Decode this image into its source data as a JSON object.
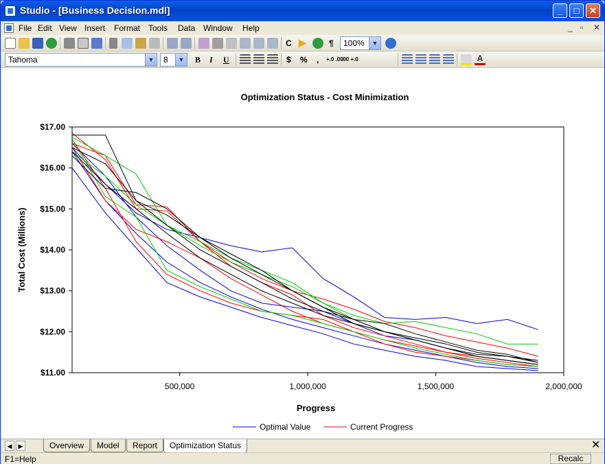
{
  "window": {
    "title": "Studio - [Business Decision.mdl]"
  },
  "menu": {
    "items": [
      "File",
      "Edit",
      "View",
      "Insert",
      "Format",
      "Tools",
      "Data",
      "Window",
      "Help"
    ]
  },
  "toolbar": {
    "zoom": "100%",
    "c_label": "C",
    "pilcrow": "¶"
  },
  "format_bar": {
    "font": "Tahoma",
    "size": "8",
    "bold": "B",
    "italic": "I",
    "underline": "U",
    "currency": "$",
    "percent": "%",
    "comma": ",",
    "inc_decimal": "+.0 .00",
    "dec_decimal": ".00 +.0"
  },
  "tabs": [
    "Overview",
    "Model",
    "Report",
    "Optimization Status"
  ],
  "status": {
    "text": "F1=Help",
    "recalc": "Recalc"
  },
  "colors": {
    "blue": "#0000dd",
    "red": "#ff0000",
    "green": "#00cc00",
    "black": "#000000"
  },
  "chart_data": {
    "type": "line",
    "title": "Optimization Status - Cost Minimization",
    "xlabel": "Progress",
    "ylabel": "Total Cost (Millions)",
    "xlim": [
      80000,
      2000000
    ],
    "ylim": [
      11.0,
      17.0
    ],
    "xticks": [
      {
        "v": 500000,
        "label": "500,000"
      },
      {
        "v": 1000000,
        "label": "1,000,000"
      },
      {
        "v": 1500000,
        "label": "1,500,000"
      },
      {
        "v": 2000000,
        "label": "2,000,000"
      }
    ],
    "yticks": [
      {
        "v": 17,
        "label": "$17.00"
      },
      {
        "v": 16,
        "label": "$16.00"
      },
      {
        "v": 15,
        "label": "$15.00"
      },
      {
        "v": 14,
        "label": "$14.00"
      },
      {
        "v": 13,
        "label": "$13.00"
      },
      {
        "v": 12,
        "label": "$12.00"
      },
      {
        "v": 11,
        "label": "$11.00"
      }
    ],
    "legend": [
      {
        "name": "Optimal Value",
        "color": "#0000dd"
      },
      {
        "name": "Current Progress",
        "color": "#ff0000"
      }
    ],
    "legend_position": "bottom",
    "x": [
      80000,
      210000,
      330000,
      450000,
      580000,
      700000,
      820000,
      940000,
      1060000,
      1180000,
      1300000,
      1420000,
      1540000,
      1660000,
      1780000,
      1900000
    ],
    "series": [
      {
        "color": "#0000dd",
        "values": [
          16.5,
          15.6,
          14.9,
          14.5,
          14.3,
          14.1,
          13.95,
          14.05,
          13.3,
          12.85,
          12.35,
          12.3,
          12.35,
          12.2,
          12.3,
          12.05
        ]
      },
      {
        "color": "#0000dd",
        "values": [
          16.0,
          14.9,
          14.05,
          13.2,
          12.85,
          12.6,
          12.35,
          12.15,
          11.95,
          11.7,
          11.55,
          11.4,
          11.3,
          11.15,
          11.1,
          11.05
        ]
      },
      {
        "color": "#0000dd",
        "values": [
          16.4,
          15.2,
          14.4,
          13.7,
          13.2,
          12.85,
          12.55,
          12.3,
          12.1,
          11.9,
          11.7,
          11.55,
          11.4,
          11.25,
          11.15,
          11.1
        ]
      },
      {
        "color": "#0000dd",
        "values": [
          16.6,
          15.8,
          14.8,
          14.1,
          13.5,
          13.0,
          12.7,
          12.6,
          12.5,
          12.2,
          11.9,
          11.8,
          11.6,
          11.4,
          11.3,
          11.2
        ]
      },
      {
        "color": "#ff0000",
        "values": [
          16.85,
          16.2,
          15.0,
          14.95,
          14.2,
          13.7,
          13.3,
          13.0,
          12.8,
          12.55,
          12.25,
          12.1,
          11.9,
          11.75,
          11.6,
          11.4
        ]
      },
      {
        "color": "#ff0000",
        "values": [
          16.7,
          15.5,
          14.2,
          13.4,
          13.0,
          12.7,
          12.5,
          12.4,
          12.3,
          12.0,
          11.7,
          11.5,
          11.4,
          11.3,
          11.2,
          11.15
        ]
      },
      {
        "color": "#ff0000",
        "values": [
          16.6,
          16.3,
          15.1,
          15.05,
          14.2,
          13.6,
          13.2,
          12.9,
          12.4,
          12.1,
          11.9,
          11.7,
          11.5,
          11.4,
          11.3,
          11.2
        ]
      },
      {
        "color": "#ff0000",
        "values": [
          16.5,
          15.2,
          14.5,
          14.2,
          13.8,
          13.3,
          12.9,
          12.5,
          12.2,
          12.0,
          11.8,
          11.65,
          11.5,
          11.35,
          11.25,
          11.15
        ]
      },
      {
        "color": "#00cc00",
        "values": [
          16.75,
          16.3,
          15.85,
          14.6,
          14.1,
          13.7,
          13.4,
          13.1,
          12.7,
          12.4,
          12.2,
          12.25,
          12.1,
          11.95,
          11.7,
          11.7
        ]
      },
      {
        "color": "#00cc00",
        "values": [
          16.7,
          15.3,
          14.8,
          13.5,
          13.1,
          12.8,
          12.5,
          12.4,
          12.2,
          12.0,
          11.8,
          11.6,
          11.45,
          11.3,
          11.2,
          11.15
        ]
      },
      {
        "color": "#00cc00",
        "values": [
          16.4,
          15.8,
          15.1,
          14.6,
          14.2,
          13.8,
          13.5,
          13.2,
          12.7,
          12.3,
          12.0,
          11.8,
          11.6,
          11.4,
          11.3,
          11.2
        ]
      },
      {
        "color": "#000000",
        "values": [
          16.8,
          16.8,
          15.2,
          14.85,
          14.3,
          13.9,
          13.5,
          13.0,
          12.6,
          12.3,
          12.0,
          11.8,
          11.6,
          11.45,
          11.4,
          11.25
        ]
      },
      {
        "color": "#000000",
        "values": [
          16.3,
          15.5,
          15.4,
          15.0,
          14.3,
          13.8,
          13.4,
          13.0,
          12.6,
          12.2,
          12.0,
          11.85,
          11.7,
          11.5,
          11.4,
          11.3
        ]
      },
      {
        "color": "#000000",
        "values": [
          16.5,
          16.1,
          15.2,
          14.6,
          14.0,
          13.6,
          13.2,
          12.8,
          12.5,
          12.3,
          12.2,
          11.95,
          11.75,
          11.55,
          11.45,
          11.25
        ]
      },
      {
        "color": "#000000",
        "values": [
          16.4,
          15.6,
          15.0,
          14.4,
          13.8,
          13.4,
          13.0,
          12.7,
          12.4,
          12.2,
          12.0,
          11.8,
          11.6,
          11.4,
          11.3,
          11.2
        ]
      }
    ]
  }
}
